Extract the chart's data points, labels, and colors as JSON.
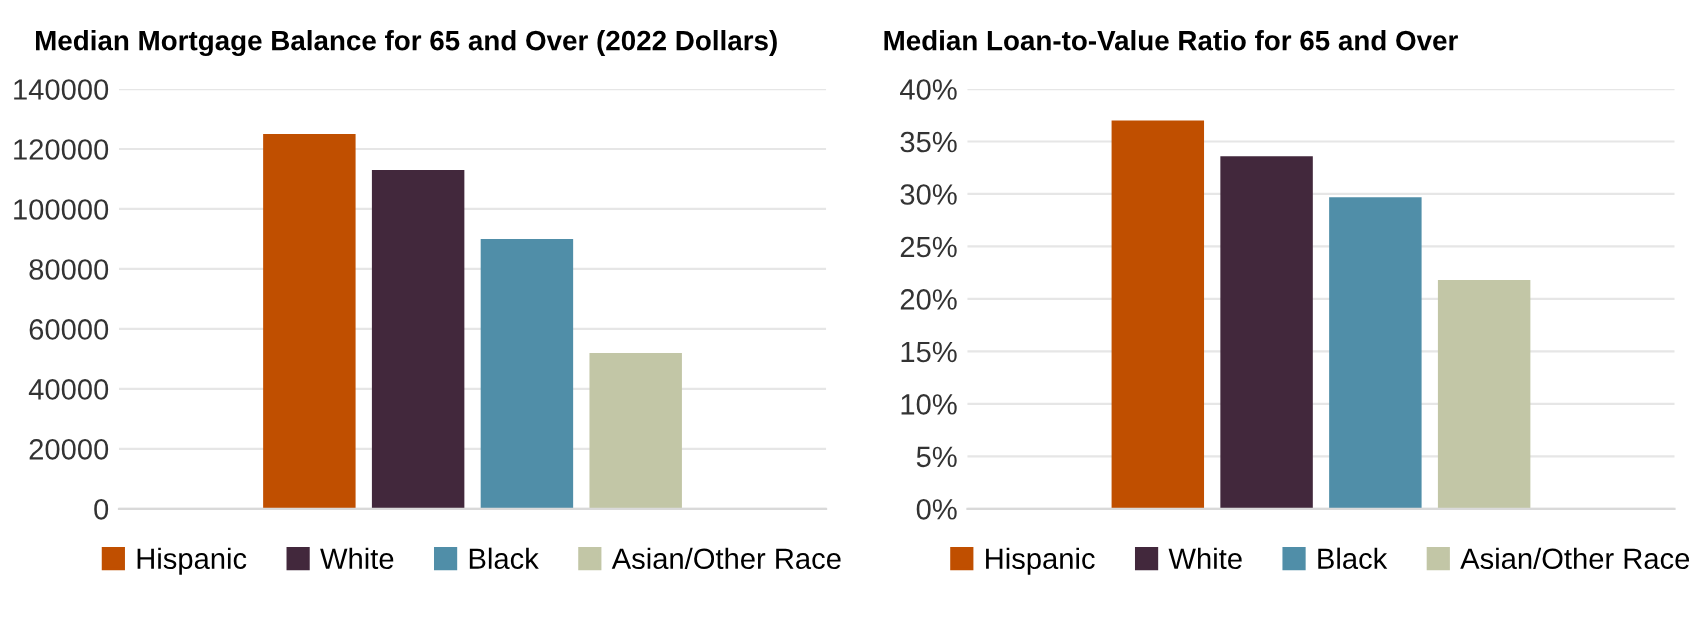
{
  "chart_data": [
    {
      "type": "bar",
      "title": "Median Mortgage Balance for 65 and Over (2022 Dollars)",
      "categories": [
        null
      ],
      "ylim": [
        0,
        140000
      ],
      "yticks": [
        0,
        20000,
        40000,
        60000,
        80000,
        100000,
        120000,
        140000
      ],
      "grid": "y",
      "legend": "bottom",
      "series": [
        {
          "name": "Hispanic",
          "color": "#c04f00",
          "values": [
            125000
          ]
        },
        {
          "name": "White",
          "color": "#42283c",
          "values": [
            113000
          ]
        },
        {
          "name": "Black",
          "color": "#508ea8",
          "values": [
            90000
          ]
        },
        {
          "name": "Asian/Other Race",
          "color": "#c2c6a6",
          "values": [
            52000
          ]
        }
      ]
    },
    {
      "type": "bar",
      "title": "Median Loan-to-Value Ratio for 65 and Over",
      "categories": [
        null
      ],
      "ylim": [
        0,
        40
      ],
      "yticks": [
        {
          "value": 0,
          "label": "0%"
        },
        {
          "value": 5,
          "label": "5%"
        },
        {
          "value": 10,
          "label": "10%"
        },
        {
          "value": 15,
          "label": "15%"
        },
        {
          "value": 20,
          "label": "20%"
        },
        {
          "value": 25,
          "label": "25%"
        },
        {
          "value": 30,
          "label": "30%"
        },
        {
          "value": 35,
          "label": "35%"
        },
        {
          "value": 40,
          "label": "40%"
        }
      ],
      "grid": "y",
      "legend": "bottom",
      "series": [
        {
          "name": "Hispanic",
          "color": "#c04f00",
          "values": [
            37.0
          ]
        },
        {
          "name": "White",
          "color": "#42283c",
          "values": [
            33.6
          ]
        },
        {
          "name": "Black",
          "color": "#508ea8",
          "values": [
            29.7
          ]
        },
        {
          "name": "Asian/Other Race",
          "color": "#c2c6a6",
          "values": [
            21.8
          ]
        }
      ]
    }
  ]
}
